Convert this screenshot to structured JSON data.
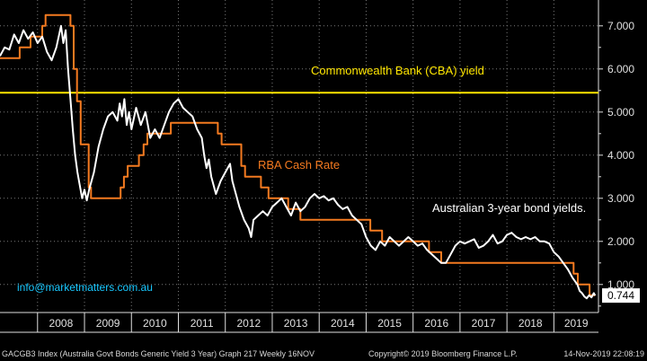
{
  "colors": {
    "background": "#000000",
    "grid": "#7a7a7a",
    "bond": "#ffffff",
    "cash": "#f47a20",
    "cba": "#ffe600",
    "label_cyan": "#18c8ff",
    "axis_text": "#e0e0e0",
    "last_box_bg": "#ffffff",
    "last_box_text": "#000000"
  },
  "annotations": {
    "cba": "Commonwealth Bank (CBA) yield",
    "cash": "RBA Cash Rate",
    "bond": "Australian 3-year bond yields.",
    "watermark": "info@marketmatters.com.au"
  },
  "footer": {
    "left": "GACGB3 Index (Australia Govt Bonds Generic Yield 3 Year) Graph 217  Weekly 16NOV",
    "mid": "Copyright© 2019 Bloomberg Finance L.P.",
    "right": "14-Nov-2019 22:08:19"
  },
  "chart_data": {
    "type": "line",
    "x_tick_labels": [
      "2008",
      "2009",
      "2010",
      "2011",
      "2012",
      "2013",
      "2014",
      "2015",
      "2016",
      "2017",
      "2018",
      "2019"
    ],
    "y_tick_labels": [
      "1.000",
      "2.000",
      "3.000",
      "4.000",
      "5.000",
      "6.000",
      "7.000"
    ],
    "ylim": [
      0.35,
      7.6
    ],
    "xlim": [
      2007.2,
      2019.95
    ],
    "grid": true,
    "last_value_label": "0.744",
    "series": [
      {
        "key": "cba",
        "name": "Commonwealth Bank (CBA) yield",
        "points": [
          [
            2007.2,
            5.45
          ],
          [
            2019.95,
            5.45
          ]
        ]
      },
      {
        "key": "cash",
        "name": "RBA Cash Rate",
        "points": [
          [
            2007.2,
            6.25
          ],
          [
            2007.62,
            6.25
          ],
          [
            2007.62,
            6.5
          ],
          [
            2007.85,
            6.5
          ],
          [
            2007.85,
            6.75
          ],
          [
            2008.1,
            6.75
          ],
          [
            2008.1,
            7.0
          ],
          [
            2008.17,
            7.0
          ],
          [
            2008.17,
            7.25
          ],
          [
            2008.7,
            7.25
          ],
          [
            2008.7,
            7.0
          ],
          [
            2008.77,
            7.0
          ],
          [
            2008.77,
            6.0
          ],
          [
            2008.84,
            6.0
          ],
          [
            2008.84,
            5.25
          ],
          [
            2008.92,
            5.25
          ],
          [
            2008.92,
            4.25
          ],
          [
            2009.09,
            4.25
          ],
          [
            2009.09,
            3.25
          ],
          [
            2009.14,
            3.25
          ],
          [
            2009.14,
            3.0
          ],
          [
            2009.77,
            3.0
          ],
          [
            2009.77,
            3.25
          ],
          [
            2009.84,
            3.25
          ],
          [
            2009.84,
            3.5
          ],
          [
            2009.92,
            3.5
          ],
          [
            2009.92,
            3.75
          ],
          [
            2010.16,
            3.75
          ],
          [
            2010.16,
            4.0
          ],
          [
            2010.26,
            4.0
          ],
          [
            2010.26,
            4.25
          ],
          [
            2010.34,
            4.25
          ],
          [
            2010.34,
            4.5
          ],
          [
            2010.84,
            4.5
          ],
          [
            2010.84,
            4.75
          ],
          [
            2011.84,
            4.75
          ],
          [
            2011.84,
            4.5
          ],
          [
            2011.92,
            4.5
          ],
          [
            2011.92,
            4.25
          ],
          [
            2012.34,
            4.25
          ],
          [
            2012.34,
            3.75
          ],
          [
            2012.42,
            3.75
          ],
          [
            2012.42,
            3.5
          ],
          [
            2012.76,
            3.5
          ],
          [
            2012.76,
            3.25
          ],
          [
            2012.92,
            3.25
          ],
          [
            2012.92,
            3.0
          ],
          [
            2013.34,
            3.0
          ],
          [
            2013.34,
            2.75
          ],
          [
            2013.6,
            2.75
          ],
          [
            2013.6,
            2.5
          ],
          [
            2015.09,
            2.5
          ],
          [
            2015.09,
            2.25
          ],
          [
            2015.34,
            2.25
          ],
          [
            2015.34,
            2.0
          ],
          [
            2016.34,
            2.0
          ],
          [
            2016.34,
            1.75
          ],
          [
            2016.6,
            1.75
          ],
          [
            2016.6,
            1.5
          ],
          [
            2019.42,
            1.5
          ],
          [
            2019.42,
            1.25
          ],
          [
            2019.51,
            1.25
          ],
          [
            2019.51,
            1.0
          ],
          [
            2019.76,
            1.0
          ],
          [
            2019.76,
            0.75
          ],
          [
            2019.88,
            0.75
          ]
        ]
      },
      {
        "key": "bond",
        "name": "Australian 3-year bond yields",
        "points": [
          [
            2007.2,
            6.3
          ],
          [
            2007.3,
            6.5
          ],
          [
            2007.4,
            6.45
          ],
          [
            2007.5,
            6.8
          ],
          [
            2007.6,
            6.6
          ],
          [
            2007.7,
            6.9
          ],
          [
            2007.8,
            6.7
          ],
          [
            2007.9,
            6.85
          ],
          [
            2008.0,
            6.6
          ],
          [
            2008.1,
            6.75
          ],
          [
            2008.2,
            6.4
          ],
          [
            2008.3,
            6.2
          ],
          [
            2008.4,
            6.5
          ],
          [
            2008.5,
            7.0
          ],
          [
            2008.55,
            6.6
          ],
          [
            2008.6,
            6.9
          ],
          [
            2008.65,
            6.0
          ],
          [
            2008.7,
            5.3
          ],
          [
            2008.75,
            4.6
          ],
          [
            2008.8,
            4.0
          ],
          [
            2008.85,
            3.6
          ],
          [
            2008.9,
            3.3
          ],
          [
            2008.95,
            3.0
          ],
          [
            2009.0,
            3.2
          ],
          [
            2009.05,
            2.95
          ],
          [
            2009.1,
            3.2
          ],
          [
            2009.2,
            3.6
          ],
          [
            2009.3,
            4.2
          ],
          [
            2009.4,
            4.6
          ],
          [
            2009.5,
            4.9
          ],
          [
            2009.6,
            5.0
          ],
          [
            2009.7,
            4.8
          ],
          [
            2009.75,
            5.2
          ],
          [
            2009.8,
            4.9
          ],
          [
            2009.85,
            5.3
          ],
          [
            2009.9,
            4.7
          ],
          [
            2009.95,
            5.0
          ],
          [
            2010.0,
            4.6
          ],
          [
            2010.1,
            5.1
          ],
          [
            2010.2,
            4.7
          ],
          [
            2010.3,
            5.0
          ],
          [
            2010.4,
            4.4
          ],
          [
            2010.5,
            4.6
          ],
          [
            2010.6,
            4.4
          ],
          [
            2010.7,
            4.7
          ],
          [
            2010.8,
            5.0
          ],
          [
            2010.9,
            5.2
          ],
          [
            2011.0,
            5.3
          ],
          [
            2011.1,
            5.1
          ],
          [
            2011.2,
            5.0
          ],
          [
            2011.3,
            4.9
          ],
          [
            2011.4,
            4.6
          ],
          [
            2011.5,
            4.4
          ],
          [
            2011.55,
            4.0
          ],
          [
            2011.6,
            3.7
          ],
          [
            2011.65,
            3.9
          ],
          [
            2011.7,
            3.5
          ],
          [
            2011.8,
            3.1
          ],
          [
            2011.9,
            3.4
          ],
          [
            2012.0,
            3.6
          ],
          [
            2012.1,
            3.8
          ],
          [
            2012.15,
            3.4
          ],
          [
            2012.2,
            3.2
          ],
          [
            2012.3,
            2.8
          ],
          [
            2012.4,
            2.5
          ],
          [
            2012.5,
            2.3
          ],
          [
            2012.55,
            2.1
          ],
          [
            2012.6,
            2.5
          ],
          [
            2012.7,
            2.6
          ],
          [
            2012.8,
            2.7
          ],
          [
            2012.9,
            2.6
          ],
          [
            2013.0,
            2.8
          ],
          [
            2013.1,
            2.9
          ],
          [
            2013.2,
            3.0
          ],
          [
            2013.3,
            2.8
          ],
          [
            2013.4,
            2.6
          ],
          [
            2013.5,
            2.9
          ],
          [
            2013.6,
            2.7
          ],
          [
            2013.7,
            2.8
          ],
          [
            2013.8,
            3.0
          ],
          [
            2013.9,
            3.1
          ],
          [
            2014.0,
            3.0
          ],
          [
            2014.1,
            3.05
          ],
          [
            2014.2,
            2.95
          ],
          [
            2014.3,
            3.0
          ],
          [
            2014.4,
            2.85
          ],
          [
            2014.5,
            2.75
          ],
          [
            2014.6,
            2.8
          ],
          [
            2014.7,
            2.6
          ],
          [
            2014.8,
            2.5
          ],
          [
            2014.9,
            2.4
          ],
          [
            2015.0,
            2.1
          ],
          [
            2015.1,
            1.9
          ],
          [
            2015.2,
            1.8
          ],
          [
            2015.3,
            2.0
          ],
          [
            2015.4,
            1.9
          ],
          [
            2015.5,
            2.1
          ],
          [
            2015.6,
            2.0
          ],
          [
            2015.7,
            1.9
          ],
          [
            2015.8,
            2.0
          ],
          [
            2015.9,
            2.1
          ],
          [
            2016.0,
            2.0
          ],
          [
            2016.1,
            1.9
          ],
          [
            2016.2,
            1.95
          ],
          [
            2016.3,
            1.8
          ],
          [
            2016.4,
            1.7
          ],
          [
            2016.5,
            1.6
          ],
          [
            2016.6,
            1.5
          ],
          [
            2016.7,
            1.5
          ],
          [
            2016.8,
            1.7
          ],
          [
            2016.9,
            1.9
          ],
          [
            2017.0,
            2.0
          ],
          [
            2017.1,
            1.95
          ],
          [
            2017.2,
            2.0
          ],
          [
            2017.3,
            2.05
          ],
          [
            2017.4,
            1.85
          ],
          [
            2017.5,
            1.9
          ],
          [
            2017.6,
            2.0
          ],
          [
            2017.7,
            2.15
          ],
          [
            2017.8,
            1.95
          ],
          [
            2017.9,
            2.0
          ],
          [
            2018.0,
            2.15
          ],
          [
            2018.1,
            2.2
          ],
          [
            2018.2,
            2.1
          ],
          [
            2018.3,
            2.05
          ],
          [
            2018.4,
            2.1
          ],
          [
            2018.5,
            2.05
          ],
          [
            2018.6,
            2.1
          ],
          [
            2018.7,
            2.0
          ],
          [
            2018.8,
            2.0
          ],
          [
            2018.9,
            1.95
          ],
          [
            2019.0,
            1.75
          ],
          [
            2019.1,
            1.65
          ],
          [
            2019.2,
            1.5
          ],
          [
            2019.3,
            1.35
          ],
          [
            2019.4,
            1.15
          ],
          [
            2019.5,
            1.0
          ],
          [
            2019.55,
            0.85
          ],
          [
            2019.6,
            0.8
          ],
          [
            2019.65,
            0.72
          ],
          [
            2019.7,
            0.68
          ],
          [
            2019.75,
            0.75
          ],
          [
            2019.8,
            0.7
          ],
          [
            2019.85,
            0.8
          ],
          [
            2019.88,
            0.744
          ]
        ]
      }
    ]
  }
}
